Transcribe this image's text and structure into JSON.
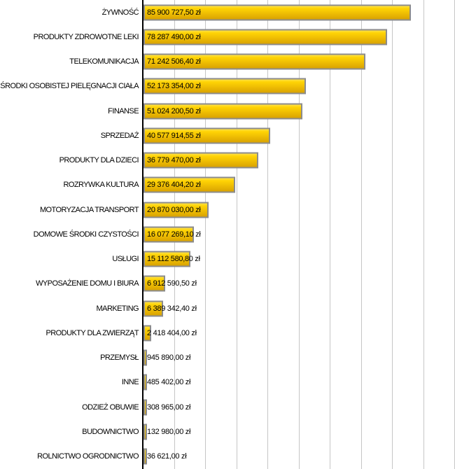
{
  "chart_data": {
    "type": "bar",
    "orientation": "horizontal",
    "title": "",
    "xlabel": "",
    "ylabel": "",
    "grid": true,
    "legend": false,
    "xlim": [
      0,
      100000000
    ],
    "gridline_interval": 10000000,
    "value_unit": "zł",
    "categories": [
      "ŻYWNOŚĆ",
      "PRODUKTY ZDROWOTNE LEKI",
      "TELEKOMUNIKACJA",
      "ŚRODKI OSOBISTEJ PIELĘGNACJI CIAŁA",
      "FINANSE",
      "SPRZEDAŻ",
      "PRODUKTY DLA DZIECI",
      "ROZRYWKA KULTURA",
      "MOTORYZACJA TRANSPORT",
      "DOMOWE ŚRODKI CZYSTOŚCI",
      "USŁUGI",
      "WYPOSAŻENIE DOMU I BIURA",
      "MARKETING",
      "PRODUKTY DLA ZWIERZĄT",
      "PRZEMYSŁ",
      "INNE",
      "ODZIEŻ OBUWIE",
      "BUDOWNICTWO",
      "ROLNICTWO OGRODNICTWO"
    ],
    "values": [
      85900727.5,
      78287490.0,
      71242506.4,
      52173354.0,
      51024200.5,
      40577914.55,
      36779470.0,
      29376404.2,
      20870030.0,
      16077269.1,
      15112580.8,
      6912590.5,
      6389342.4,
      2418404.0,
      945890.0,
      485402.0,
      308965.0,
      132980.0,
      36621.0
    ],
    "value_labels": [
      "85 900 727,50 zł",
      "78 287 490,00 zł",
      "71 242 506,40 zł",
      "52 173 354,00 zł",
      "51 024 200,50 zł",
      "40 577 914,55 zł",
      "36 779 470,00 zł",
      "29 376 404,20 zł",
      "20 870 030,00 zł",
      "16 077 269,10 zł",
      "15 112 580,80 zł",
      "6 912 590,50 zł",
      "6 389 342,40 zł",
      "2 418 404,00 zł",
      "945 890,00 zł",
      "485 402,00 zł",
      "308 965,00 zł",
      "132 980,00 zł",
      "36 621,00 zł"
    ],
    "colors": {
      "bar_gradient_top": "#FFE14A",
      "bar_gradient_upper": "#FFD405",
      "bar_gradient_mid": "#EFBE03",
      "bar_gradient_bottom": "#D9A302",
      "bar_border": "#8C8C8C",
      "gridline": "#C6C6C6",
      "axis": "#000000",
      "text": "#000000",
      "background": "#FFFFFF"
    }
  }
}
